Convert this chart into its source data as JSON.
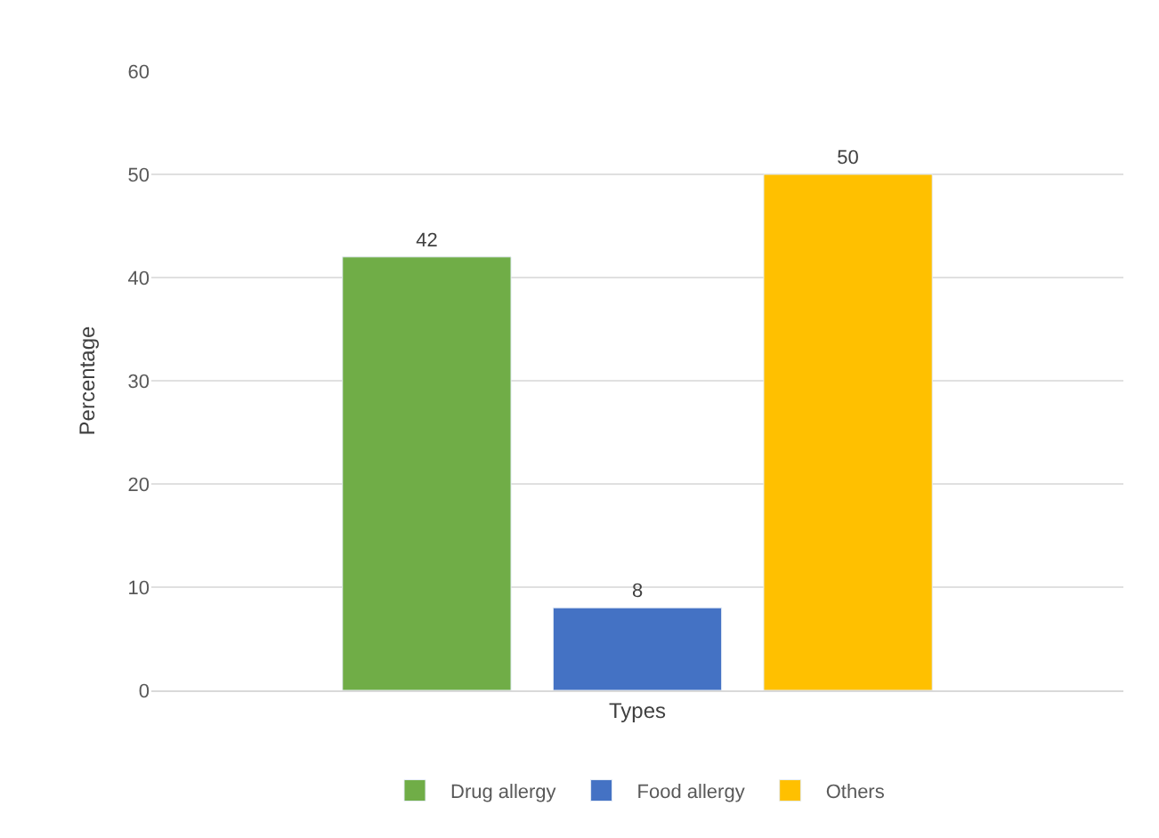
{
  "chart_data": {
    "type": "bar",
    "ylabel": "Percentage",
    "categories": [
      "Types"
    ],
    "series": [
      {
        "name": "Drug allergy",
        "color": "#70ad47",
        "values": [
          42
        ]
      },
      {
        "name": "Food allergy",
        "color": "#4472c4",
        "values": [
          8
        ]
      },
      {
        "name": "Others",
        "color": "#ffc000",
        "values": [
          50
        ]
      }
    ],
    "ylim": [
      0,
      60
    ],
    "yticks": [
      0,
      10,
      20,
      30,
      40,
      50,
      60
    ],
    "grid": "y",
    "legend": "bottom",
    "data_labels": true
  }
}
